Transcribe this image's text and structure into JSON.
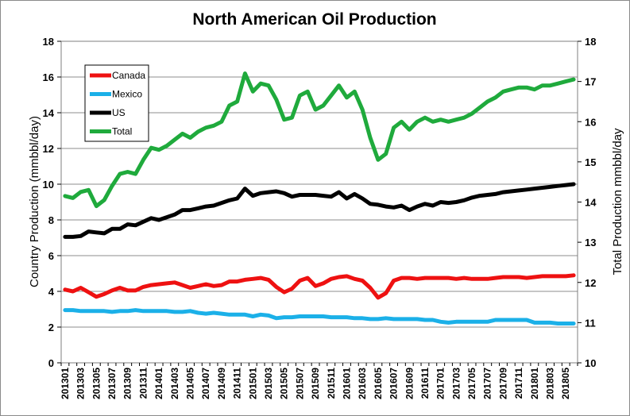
{
  "chart_data": {
    "type": "line",
    "title": "North American Oil Production",
    "ylabel": "Country Production (mmbbl/day)",
    "y2label": "Total Production mmbbl/day",
    "ylim": [
      0,
      18
    ],
    "yticks": [
      0,
      2,
      4,
      6,
      8,
      10,
      12,
      14,
      16,
      18
    ],
    "y2lim": [
      10,
      18
    ],
    "y2ticks": [
      10,
      11,
      12,
      13,
      14,
      15,
      16,
      17,
      18
    ],
    "grid": true,
    "legend_position": "top-left",
    "x": [
      "201301",
      "201302",
      "201303",
      "201304",
      "201305",
      "201306",
      "201307",
      "201308",
      "201309",
      "201310",
      "201311",
      "201312",
      "201401",
      "201402",
      "201403",
      "201404",
      "201405",
      "201406",
      "201407",
      "201408",
      "201409",
      "201410",
      "201411",
      "201412",
      "201501",
      "201502",
      "201503",
      "201504",
      "201505",
      "201506",
      "201507",
      "201508",
      "201509",
      "201510",
      "201511",
      "201512",
      "201601",
      "201602",
      "201603",
      "201604",
      "201605",
      "201606",
      "201607",
      "201608",
      "201609",
      "201610",
      "201611",
      "201612",
      "201701",
      "201702",
      "201703",
      "201704",
      "201705",
      "201706",
      "201707",
      "201708",
      "201709",
      "201710",
      "201711",
      "201712",
      "201801",
      "201802",
      "201803",
      "201804",
      "201805",
      "201806"
    ],
    "xtick_labels": [
      "201301",
      "201303",
      "201305",
      "201307",
      "201309",
      "201311",
      "201401",
      "201403",
      "201405",
      "201407",
      "201409",
      "201411",
      "201501",
      "201503",
      "201505",
      "201507",
      "201509",
      "201511",
      "201601",
      "201603",
      "201605",
      "201607",
      "201609",
      "201611",
      "201701",
      "201703",
      "201705",
      "201707",
      "201709",
      "201711",
      "201801",
      "201803",
      "201805"
    ],
    "series": [
      {
        "name": "Canada",
        "axis": "left",
        "color": "#ee1111",
        "values": [
          4.1,
          4.0,
          4.2,
          3.95,
          3.7,
          3.85,
          4.05,
          4.2,
          4.05,
          4.05,
          4.25,
          4.35,
          4.4,
          4.45,
          4.5,
          4.35,
          4.2,
          4.3,
          4.4,
          4.3,
          4.35,
          4.55,
          4.55,
          4.65,
          4.7,
          4.75,
          4.65,
          4.25,
          3.95,
          4.15,
          4.6,
          4.75,
          4.3,
          4.45,
          4.7,
          4.8,
          4.85,
          4.7,
          4.6,
          4.2,
          3.65,
          3.9,
          4.6,
          4.75,
          4.75,
          4.7,
          4.75,
          4.75,
          4.75,
          4.75,
          4.7,
          4.75,
          4.7,
          4.7,
          4.7,
          4.75,
          4.8,
          4.8,
          4.8,
          4.75,
          4.8,
          4.85,
          4.85,
          4.85,
          4.85,
          4.9
        ]
      },
      {
        "name": "Mexico",
        "axis": "left",
        "color": "#1bb0e8",
        "values": [
          2.95,
          2.95,
          2.9,
          2.9,
          2.9,
          2.9,
          2.85,
          2.9,
          2.9,
          2.95,
          2.9,
          2.9,
          2.9,
          2.9,
          2.85,
          2.85,
          2.9,
          2.8,
          2.75,
          2.8,
          2.75,
          2.7,
          2.7,
          2.7,
          2.6,
          2.7,
          2.65,
          2.5,
          2.55,
          2.55,
          2.6,
          2.6,
          2.6,
          2.6,
          2.55,
          2.55,
          2.55,
          2.5,
          2.5,
          2.45,
          2.45,
          2.5,
          2.45,
          2.45,
          2.45,
          2.45,
          2.4,
          2.4,
          2.3,
          2.25,
          2.3,
          2.3,
          2.3,
          2.3,
          2.3,
          2.4,
          2.4,
          2.4,
          2.4,
          2.4,
          2.25,
          2.25,
          2.25,
          2.2,
          2.2,
          2.2
        ]
      },
      {
        "name": "US",
        "axis": "left",
        "color": "#000000",
        "values": [
          7.05,
          7.05,
          7.1,
          7.35,
          7.3,
          7.25,
          7.5,
          7.5,
          7.75,
          7.7,
          7.9,
          8.1,
          8.0,
          8.15,
          8.3,
          8.55,
          8.55,
          8.65,
          8.75,
          8.8,
          8.95,
          9.1,
          9.2,
          9.75,
          9.35,
          9.5,
          9.55,
          9.6,
          9.5,
          9.3,
          9.4,
          9.4,
          9.4,
          9.35,
          9.3,
          9.55,
          9.2,
          9.45,
          9.2,
          8.9,
          8.85,
          8.75,
          8.7,
          8.8,
          8.55,
          8.75,
          8.9,
          8.8,
          9.0,
          8.95,
          9.0,
          9.1,
          9.25,
          9.35,
          9.4,
          9.45,
          9.55,
          9.6,
          9.65,
          9.7,
          9.75,
          9.8,
          9.85,
          9.9,
          9.95,
          10.0
        ]
      },
      {
        "name": "Total",
        "axis": "right",
        "color": "#1faa3c",
        "values": [
          14.15,
          14.1,
          14.25,
          14.3,
          13.9,
          14.05,
          14.4,
          14.7,
          14.75,
          14.7,
          15.05,
          15.35,
          15.3,
          15.4,
          15.55,
          15.7,
          15.6,
          15.75,
          15.85,
          15.9,
          16.0,
          16.4,
          16.5,
          17.2,
          16.75,
          16.95,
          16.9,
          16.55,
          16.05,
          16.1,
          16.65,
          16.75,
          16.3,
          16.4,
          16.65,
          16.9,
          16.6,
          16.75,
          16.3,
          15.6,
          15.05,
          15.2,
          15.85,
          16.0,
          15.8,
          16.0,
          16.1,
          16.0,
          16.05,
          16.0,
          16.05,
          16.1,
          16.2,
          16.35,
          16.5,
          16.6,
          16.75,
          16.8,
          16.85,
          16.85,
          16.8,
          16.9,
          16.9,
          16.95,
          17.0,
          17.05
        ]
      }
    ]
  }
}
